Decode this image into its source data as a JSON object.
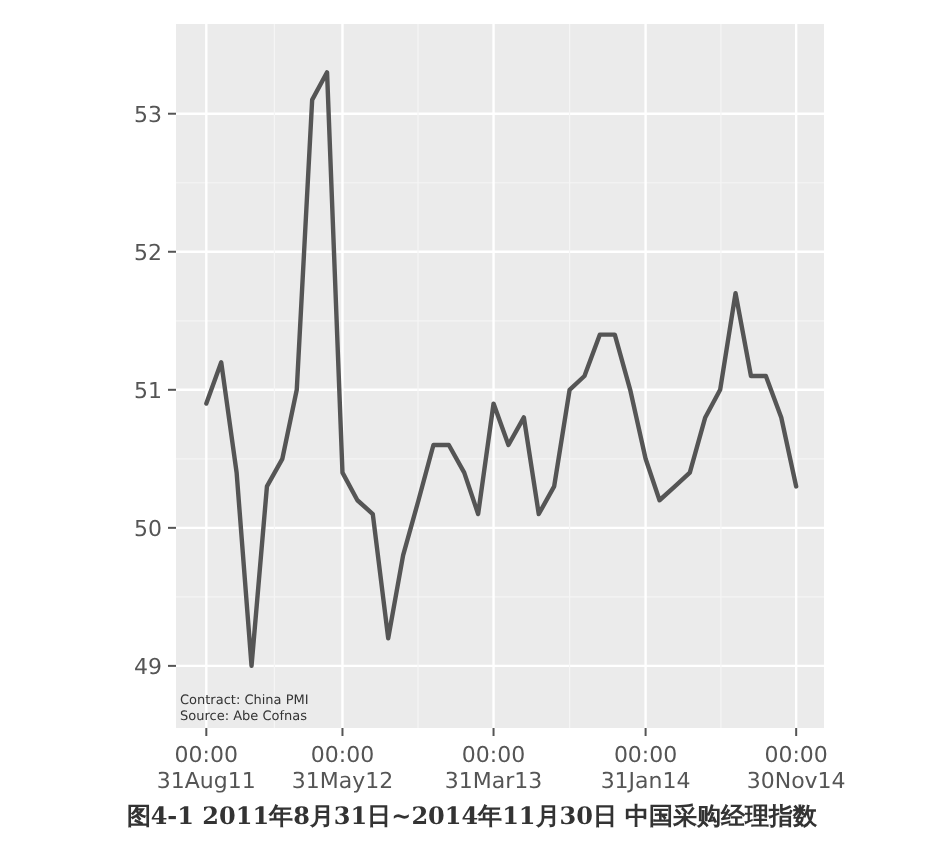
{
  "chart_data": {
    "type": "line",
    "title": "图4-1 2011年8月31日~2014年11月30日 中国采购经理指数",
    "annotations": [
      "Contract: China PMI",
      "Source: Abe Cofnas"
    ],
    "x": [
      "2011-08-31",
      "2011-09-30",
      "2011-10-31",
      "2011-11-30",
      "2011-12-31",
      "2012-01-31",
      "2012-02-29",
      "2012-03-31",
      "2012-04-30",
      "2012-05-31",
      "2012-06-30",
      "2012-07-31",
      "2012-08-31",
      "2012-09-30",
      "2012-10-31",
      "2012-11-30",
      "2012-12-31",
      "2013-01-31",
      "2013-02-28",
      "2013-03-31",
      "2013-04-30",
      "2013-05-31",
      "2013-06-30",
      "2013-07-31",
      "2013-08-31",
      "2013-09-30",
      "2013-10-31",
      "2013-11-30",
      "2013-12-31",
      "2014-01-31",
      "2014-02-28",
      "2014-03-31",
      "2014-04-30",
      "2014-05-31",
      "2014-06-30",
      "2014-07-31",
      "2014-08-31",
      "2014-09-30",
      "2014-10-31",
      "2014-11-30"
    ],
    "series": [
      {
        "color": "#555555",
        "values": [
          50.9,
          51.2,
          50.4,
          49.0,
          50.3,
          50.5,
          51.0,
          53.1,
          53.3,
          50.4,
          50.2,
          50.1,
          49.2,
          49.8,
          50.2,
          50.6,
          50.6,
          50.4,
          50.1,
          50.9,
          50.6,
          50.8,
          50.1,
          50.3,
          51.0,
          51.1,
          51.4,
          51.4,
          51.0,
          50.5,
          50.2,
          50.3,
          50.4,
          50.8,
          51.0,
          51.7,
          51.1,
          51.1,
          50.8,
          50.3
        ]
      }
    ],
    "xlim": [
      "2011-07-01",
      "2015-01-25"
    ],
    "ylim": [
      48.55,
      53.65
    ],
    "yticks": [
      49,
      50,
      51,
      52,
      53
    ],
    "xticks": [
      {
        "value": "2011-08-31",
        "label": "00:00\n31Aug11"
      },
      {
        "value": "2012-05-31",
        "label": "00:00\n31May12"
      },
      {
        "value": "2013-03-31",
        "label": "00:00\n31Mar13"
      },
      {
        "value": "2014-01-31",
        "label": "00:00\n31Jan14"
      },
      {
        "value": "2014-11-30",
        "label": "00:00\n30Nov14"
      }
    ],
    "grid": true,
    "line_style": "solid",
    "marker": "none"
  }
}
